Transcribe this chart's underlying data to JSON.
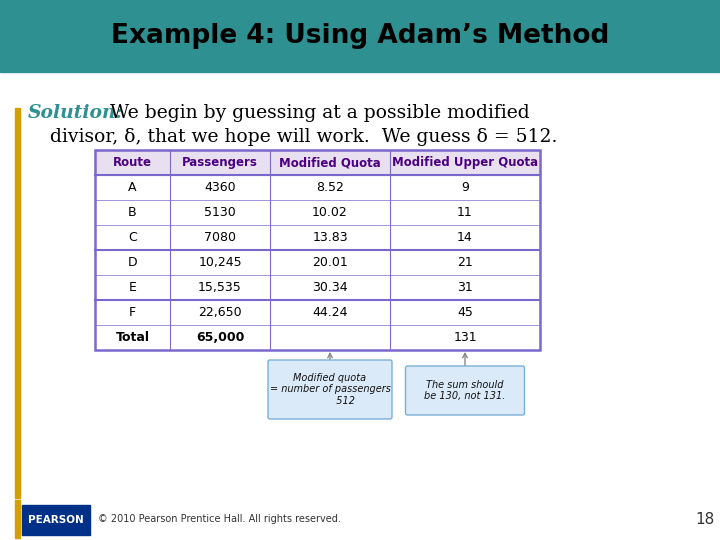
{
  "title": "Example 4: Using Adam’s Method",
  "title_bg": "#2e9090",
  "title_color": "#000000",
  "dashed_color": "#ffffff",
  "left_bar_color": "#d4a000",
  "body_bg": "#ffffff",
  "solution_italic": "Solution:",
  "solution_color": "#2e9090",
  "table_headers": [
    "Route",
    "Passengers",
    "Modified Quota",
    "Modified Upper Quota"
  ],
  "table_rows": [
    [
      "A",
      "4360",
      "8.52",
      "9"
    ],
    [
      "B",
      "5130",
      "10.02",
      "11"
    ],
    [
      "C",
      "7080",
      "13.83",
      "14"
    ],
    [
      "D",
      "10,245",
      "20.01",
      "21"
    ],
    [
      "E",
      "15,535",
      "30.34",
      "31"
    ],
    [
      "F",
      "22,650",
      "44.24",
      "45"
    ],
    [
      "Total",
      "65,000",
      "",
      "131"
    ]
  ],
  "header_bg": "#e8e0f0",
  "header_color": "#4b0082",
  "table_border_color": "#7b68cc",
  "thick_border_rows": [
    0,
    3,
    4,
    6
  ],
  "callout1_text": "Modified quota\n= number of passengers\n          512",
  "callout2_text": "The sum should\nbe 130, not 131.",
  "callout_bg": "#daeaf8",
  "callout_border": "#7ab0d8",
  "footer_text": "© 2010 Pearson Prentice Hall. All rights reserved.",
  "page_number": "18",
  "pearson_bg": "#003087"
}
